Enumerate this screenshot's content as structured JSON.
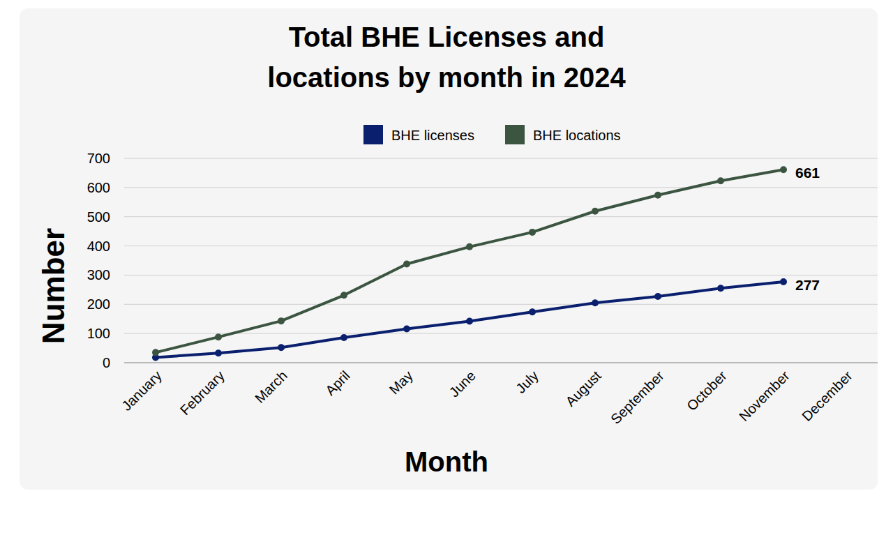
{
  "chart_data": {
    "type": "line",
    "title": "Total BHE Licenses and locations by month in 2024",
    "x_label": "Month",
    "y_label": "Number",
    "categories": [
      "January",
      "February",
      "March",
      "April",
      "May",
      "June",
      "July",
      "August",
      "September",
      "October",
      "November",
      "December"
    ],
    "series": [
      {
        "name": "BHE licenses",
        "color": "#0a1f6e",
        "marker": "circle",
        "values": [
          18,
          33,
          52,
          86,
          116,
          142,
          174,
          205,
          227,
          255,
          277,
          null
        ],
        "value_labels": [
          null,
          null,
          null,
          null,
          null,
          null,
          null,
          null,
          null,
          null,
          "277",
          null
        ]
      },
      {
        "name": "BHE locations",
        "color": "#3b5541",
        "marker": "circle",
        "values": [
          35,
          88,
          143,
          231,
          338,
          397,
          447,
          519,
          574,
          623,
          661,
          null
        ],
        "value_labels": [
          null,
          null,
          null,
          null,
          null,
          null,
          null,
          null,
          null,
          null,
          "661",
          null
        ]
      }
    ],
    "ylim": [
      0,
      700
    ],
    "yticks": [
      0,
      100,
      200,
      300,
      400,
      500,
      600,
      700
    ],
    "grid": true,
    "legend": "top",
    "data_labels": true
  }
}
